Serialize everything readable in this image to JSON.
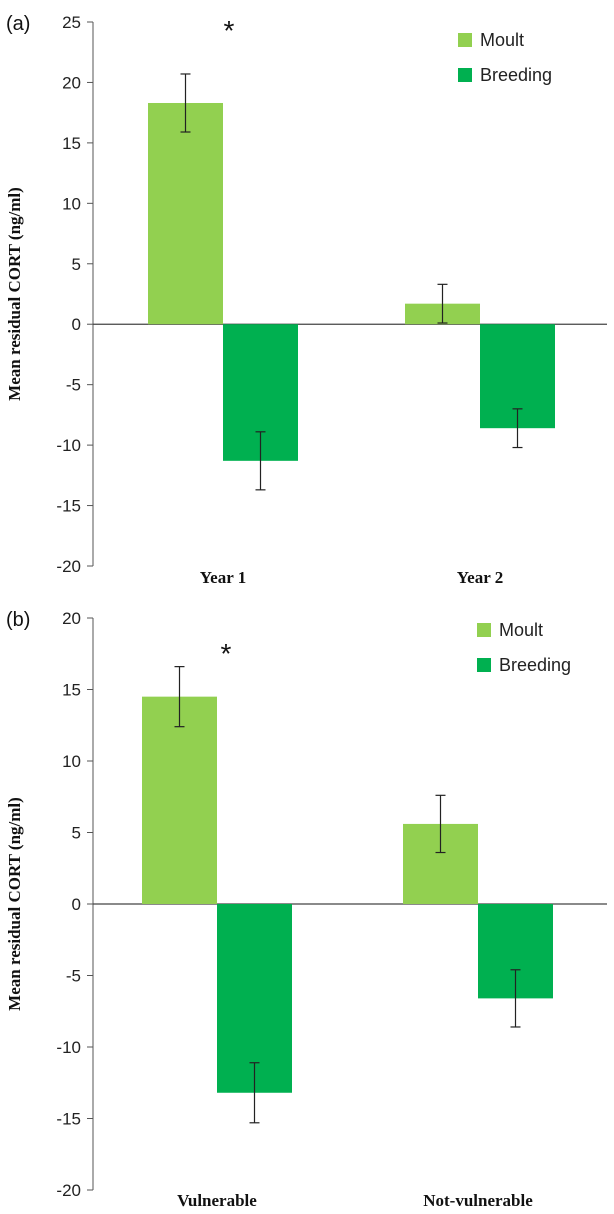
{
  "chart_data": [
    {
      "type": "bar",
      "panel_label": "(a)",
      "ylabel": "Mean  residual CORT (ng/ml)",
      "ylim": [
        -20,
        25
      ],
      "yticks": [
        25,
        20,
        15,
        10,
        5,
        0,
        -5,
        -10,
        -15,
        -20
      ],
      "categories": [
        "Year 1",
        "Year 2"
      ],
      "series": [
        {
          "name": "Moult",
          "values": [
            18.3,
            1.7
          ],
          "errors": [
            2.4,
            1.6
          ],
          "color": "#92d050"
        },
        {
          "name": "Breeding",
          "values": [
            -11.3,
            -8.6
          ],
          "errors": [
            2.4,
            1.6
          ],
          "color": "#00b050"
        }
      ],
      "annotations": [
        {
          "text": "*",
          "category": 0
        }
      ],
      "legend": "top-right",
      "grid": false
    },
    {
      "type": "bar",
      "panel_label": "(b)",
      "ylabel": "Mean  residual CORT (ng/ml)",
      "ylim": [
        -20,
        20
      ],
      "yticks": [
        20,
        15,
        10,
        5,
        0,
        -5,
        -10,
        -15,
        -20
      ],
      "categories": [
        "Vulnerable",
        "Not-vulnerable"
      ],
      "series": [
        {
          "name": "Moult",
          "values": [
            14.5,
            5.6
          ],
          "errors": [
            2.1,
            2.0
          ],
          "color": "#92d050"
        },
        {
          "name": "Breeding",
          "values": [
            -13.2,
            -6.6
          ],
          "errors": [
            2.1,
            2.0
          ],
          "color": "#00b050"
        }
      ],
      "annotations": [
        {
          "text": "*",
          "category": 0
        }
      ],
      "legend": "top-right",
      "grid": false
    }
  ]
}
